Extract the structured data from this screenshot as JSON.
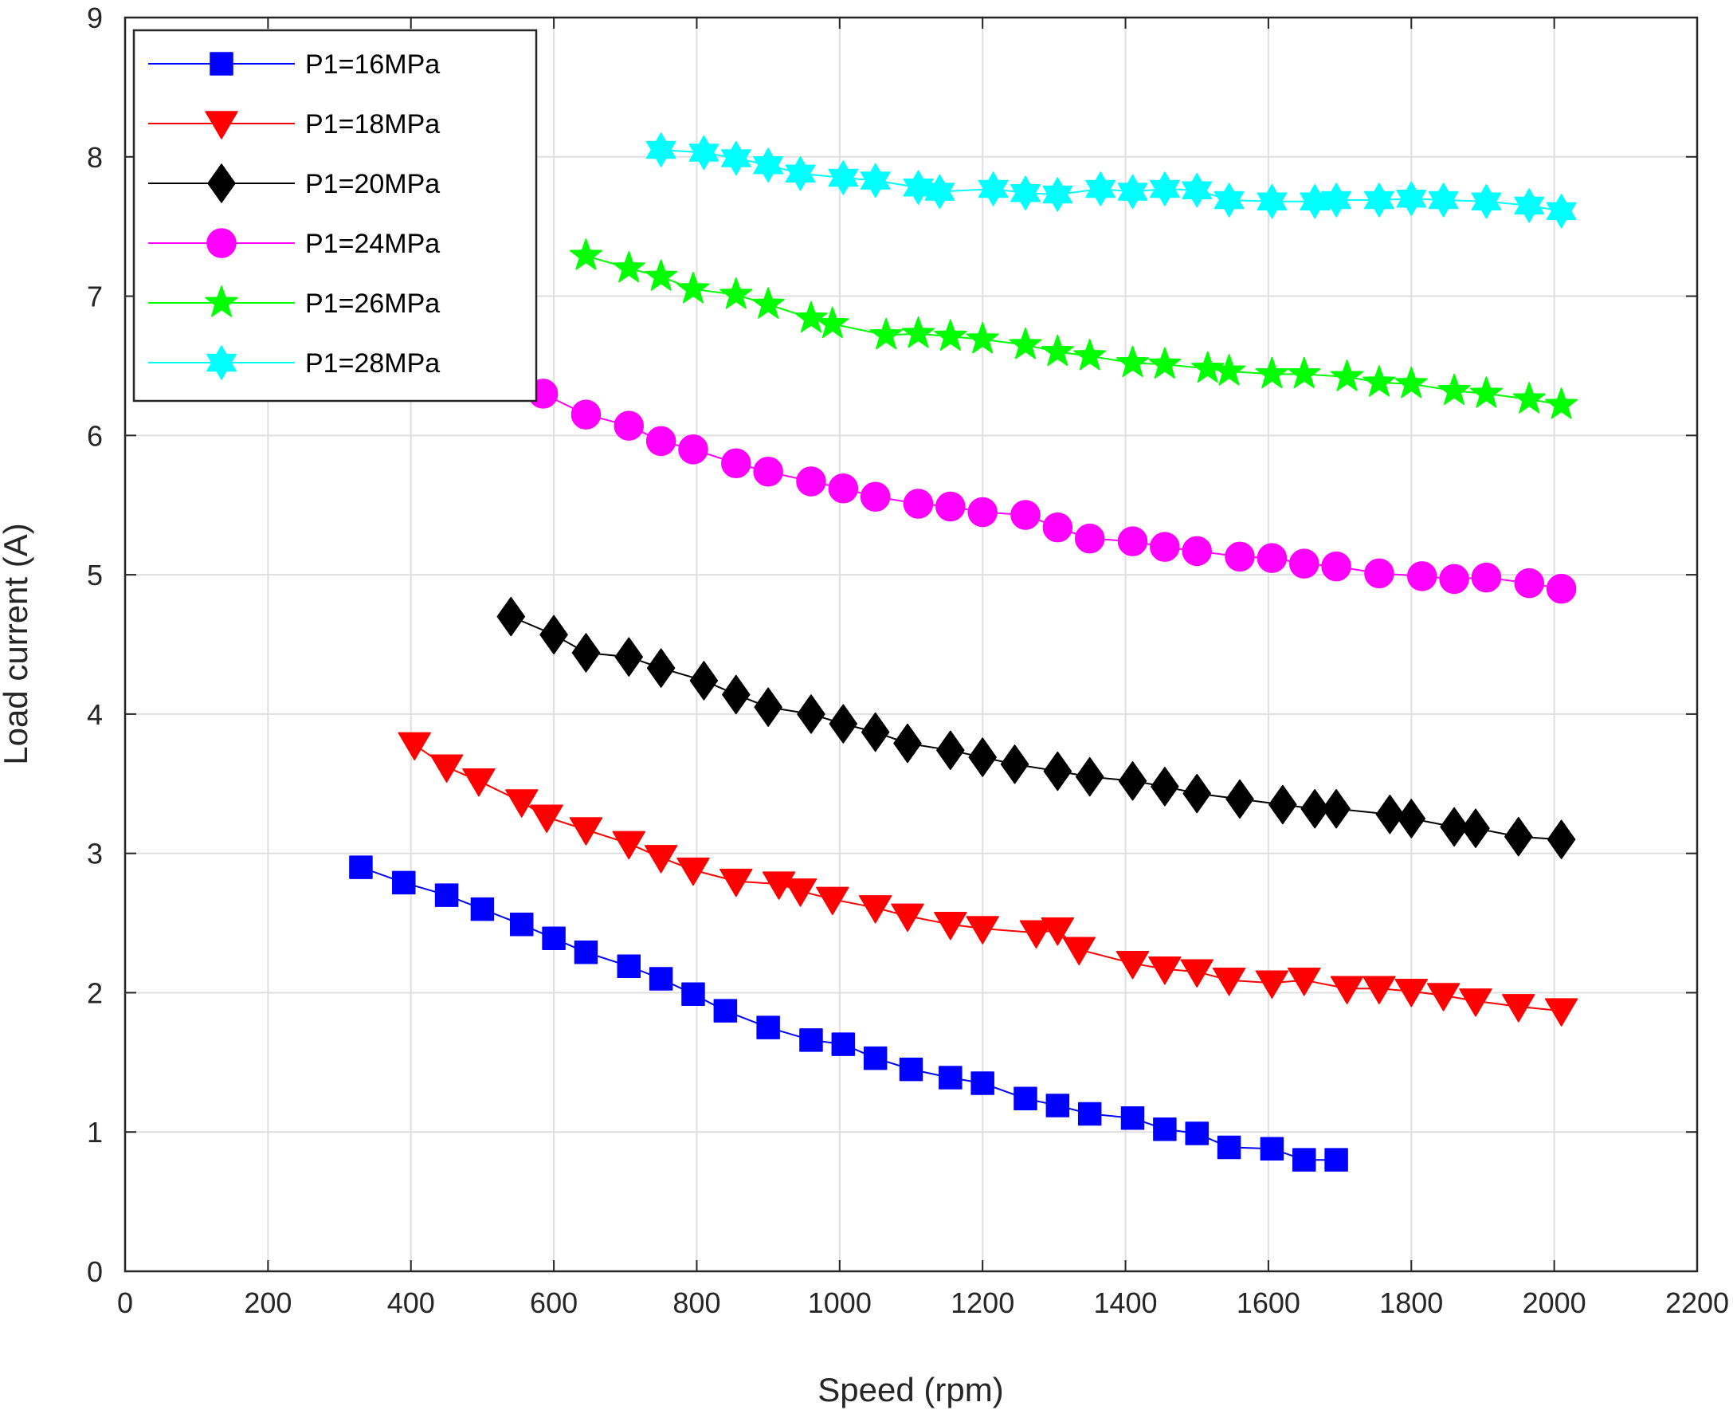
{
  "chart_data": {
    "type": "line",
    "title": "",
    "xlabel": "Speed (rpm)",
    "ylabel": "Load current (A)",
    "xlim": [
      0,
      2200
    ],
    "ylim": [
      0,
      9
    ],
    "xticks": [
      0,
      200,
      400,
      600,
      800,
      1000,
      1200,
      1400,
      1600,
      1800,
      2000,
      2200
    ],
    "yticks": [
      0,
      1,
      2,
      3,
      4,
      5,
      6,
      7,
      8,
      9
    ],
    "grid": true,
    "legend": "top-left",
    "series": [
      {
        "name": "P1=16MPa",
        "color": "#0000ff",
        "marker": "square",
        "points": [
          [
            330,
            2.9
          ],
          [
            390,
            2.79
          ],
          [
            450,
            2.7
          ],
          [
            500,
            2.6
          ],
          [
            555,
            2.49
          ],
          [
            600,
            2.39
          ],
          [
            645,
            2.29
          ],
          [
            705,
            2.19
          ],
          [
            750,
            2.1
          ],
          [
            795,
            1.99
          ],
          [
            840,
            1.87
          ],
          [
            900,
            1.75
          ],
          [
            960,
            1.66
          ],
          [
            1005,
            1.63
          ],
          [
            1050,
            1.53
          ],
          [
            1100,
            1.45
          ],
          [
            1155,
            1.39
          ],
          [
            1200,
            1.35
          ],
          [
            1260,
            1.24
          ],
          [
            1305,
            1.19
          ],
          [
            1350,
            1.13
          ],
          [
            1410,
            1.1
          ],
          [
            1455,
            1.02
          ],
          [
            1500,
            0.99
          ],
          [
            1545,
            0.89
          ],
          [
            1605,
            0.88
          ],
          [
            1650,
            0.8
          ],
          [
            1695,
            0.8
          ]
        ]
      },
      {
        "name": "P1=18MPa",
        "color": "#ff0000",
        "marker": "triangle-down",
        "points": [
          [
            405,
            3.78
          ],
          [
            450,
            3.62
          ],
          [
            495,
            3.52
          ],
          [
            555,
            3.37
          ],
          [
            590,
            3.26
          ],
          [
            645,
            3.17
          ],
          [
            705,
            3.07
          ],
          [
            750,
            2.97
          ],
          [
            795,
            2.88
          ],
          [
            855,
            2.8
          ],
          [
            915,
            2.78
          ],
          [
            945,
            2.73
          ],
          [
            990,
            2.67
          ],
          [
            1050,
            2.61
          ],
          [
            1095,
            2.55
          ],
          [
            1155,
            2.49
          ],
          [
            1200,
            2.46
          ],
          [
            1275,
            2.43
          ],
          [
            1305,
            2.45
          ],
          [
            1335,
            2.31
          ],
          [
            1410,
            2.21
          ],
          [
            1455,
            2.17
          ],
          [
            1500,
            2.15
          ],
          [
            1545,
            2.09
          ],
          [
            1605,
            2.07
          ],
          [
            1650,
            2.09
          ],
          [
            1710,
            2.03
          ],
          [
            1755,
            2.03
          ],
          [
            1800,
            2.01
          ],
          [
            1845,
            1.98
          ],
          [
            1890,
            1.94
          ],
          [
            1950,
            1.9
          ],
          [
            2010,
            1.87
          ]
        ]
      },
      {
        "name": "P1=20MPa",
        "color": "#000000",
        "marker": "diamond",
        "points": [
          [
            540,
            4.7
          ],
          [
            600,
            4.57
          ],
          [
            645,
            4.44
          ],
          [
            705,
            4.41
          ],
          [
            750,
            4.33
          ],
          [
            810,
            4.24
          ],
          [
            855,
            4.14
          ],
          [
            900,
            4.05
          ],
          [
            960,
            4.0
          ],
          [
            1005,
            3.93
          ],
          [
            1050,
            3.87
          ],
          [
            1095,
            3.79
          ],
          [
            1155,
            3.74
          ],
          [
            1200,
            3.69
          ],
          [
            1245,
            3.64
          ],
          [
            1305,
            3.59
          ],
          [
            1350,
            3.55
          ],
          [
            1410,
            3.52
          ],
          [
            1455,
            3.48
          ],
          [
            1500,
            3.43
          ],
          [
            1560,
            3.39
          ],
          [
            1620,
            3.35
          ],
          [
            1665,
            3.32
          ],
          [
            1695,
            3.32
          ],
          [
            1770,
            3.28
          ],
          [
            1800,
            3.25
          ],
          [
            1860,
            3.19
          ],
          [
            1890,
            3.18
          ],
          [
            1950,
            3.12
          ],
          [
            2010,
            3.1
          ]
        ]
      },
      {
        "name": "P1=24MPa",
        "color": "#ff00ff",
        "marker": "circle",
        "points": [
          [
            585,
            6.3
          ],
          [
            645,
            6.15
          ],
          [
            705,
            6.07
          ],
          [
            750,
            5.96
          ],
          [
            795,
            5.9
          ],
          [
            855,
            5.8
          ],
          [
            900,
            5.74
          ],
          [
            960,
            5.67
          ],
          [
            1005,
            5.62
          ],
          [
            1050,
            5.56
          ],
          [
            1110,
            5.51
          ],
          [
            1155,
            5.49
          ],
          [
            1200,
            5.45
          ],
          [
            1260,
            5.43
          ],
          [
            1305,
            5.34
          ],
          [
            1350,
            5.26
          ],
          [
            1410,
            5.24
          ],
          [
            1455,
            5.2
          ],
          [
            1500,
            5.17
          ],
          [
            1560,
            5.13
          ],
          [
            1605,
            5.12
          ],
          [
            1650,
            5.08
          ],
          [
            1695,
            5.06
          ],
          [
            1755,
            5.01
          ],
          [
            1815,
            4.99
          ],
          [
            1860,
            4.97
          ],
          [
            1905,
            4.98
          ],
          [
            1965,
            4.94
          ],
          [
            2010,
            4.9
          ]
        ]
      },
      {
        "name": "P1=26MPa",
        "color": "#00ff00",
        "marker": "star",
        "points": [
          [
            645,
            7.29
          ],
          [
            705,
            7.2
          ],
          [
            750,
            7.14
          ],
          [
            795,
            7.05
          ],
          [
            855,
            7.01
          ],
          [
            900,
            6.94
          ],
          [
            960,
            6.84
          ],
          [
            990,
            6.8
          ],
          [
            1065,
            6.72
          ],
          [
            1110,
            6.73
          ],
          [
            1155,
            6.71
          ],
          [
            1200,
            6.69
          ],
          [
            1260,
            6.65
          ],
          [
            1305,
            6.6
          ],
          [
            1350,
            6.57
          ],
          [
            1410,
            6.52
          ],
          [
            1455,
            6.51
          ],
          [
            1515,
            6.48
          ],
          [
            1545,
            6.46
          ],
          [
            1605,
            6.44
          ],
          [
            1650,
            6.44
          ],
          [
            1710,
            6.42
          ],
          [
            1755,
            6.38
          ],
          [
            1800,
            6.37
          ],
          [
            1860,
            6.32
          ],
          [
            1905,
            6.3
          ],
          [
            1965,
            6.26
          ],
          [
            2010,
            6.22
          ]
        ]
      },
      {
        "name": "P1=28MPa",
        "color": "#00ffff",
        "marker": "hexagram",
        "points": [
          [
            750,
            8.05
          ],
          [
            810,
            8.03
          ],
          [
            855,
            7.99
          ],
          [
            900,
            7.94
          ],
          [
            945,
            7.88
          ],
          [
            1005,
            7.85
          ],
          [
            1050,
            7.83
          ],
          [
            1110,
            7.78
          ],
          [
            1140,
            7.75
          ],
          [
            1215,
            7.77
          ],
          [
            1260,
            7.74
          ],
          [
            1305,
            7.73
          ],
          [
            1365,
            7.77
          ],
          [
            1410,
            7.75
          ],
          [
            1455,
            7.77
          ],
          [
            1500,
            7.76
          ],
          [
            1545,
            7.69
          ],
          [
            1605,
            7.68
          ],
          [
            1665,
            7.68
          ],
          [
            1695,
            7.69
          ],
          [
            1755,
            7.69
          ],
          [
            1800,
            7.7
          ],
          [
            1845,
            7.69
          ],
          [
            1905,
            7.68
          ],
          [
            1965,
            7.65
          ],
          [
            2010,
            7.61
          ]
        ]
      }
    ]
  }
}
